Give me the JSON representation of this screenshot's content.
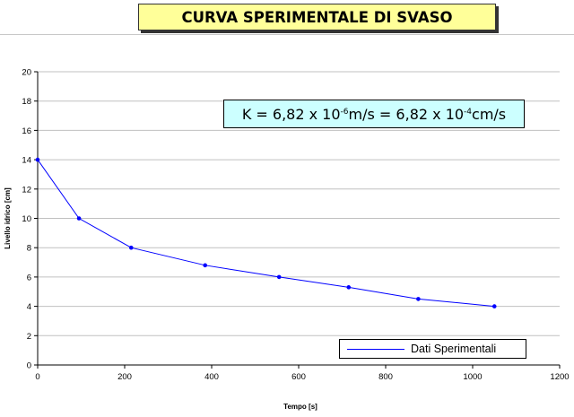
{
  "title": "CURVA SPERIMENTALE DI SVASO",
  "annotation": {
    "prefix": "K = 6,82 x 10",
    "exp1": "-6",
    "middle": " m/s = 6,82 x 10",
    "exp2": "-4",
    "suffix": " cm/s"
  },
  "colors": {
    "series": "#0000ff",
    "title_bg": "#ffff99",
    "annotation_bg": "#ccffff"
  },
  "chart_data": {
    "type": "line",
    "xlabel": "Tempo [s]",
    "ylabel": "Livello idrico [cm]",
    "xlim": [
      0,
      1200
    ],
    "ylim": [
      0,
      20
    ],
    "xticks": [
      "0",
      "200",
      "400",
      "600",
      "800",
      "1000",
      "1200"
    ],
    "yticks": [
      "0",
      "2",
      "4",
      "6",
      "8",
      "10",
      "12",
      "14",
      "16",
      "18",
      "20"
    ],
    "grid": true,
    "legend": "bottom-right",
    "series": [
      {
        "name": "Dati Sperimentali",
        "x": [
          0,
          95,
          215,
          385,
          555,
          715,
          875,
          1050
        ],
        "y": [
          14,
          10,
          8,
          6.8,
          6,
          5.3,
          4.5,
          4
        ]
      }
    ]
  }
}
